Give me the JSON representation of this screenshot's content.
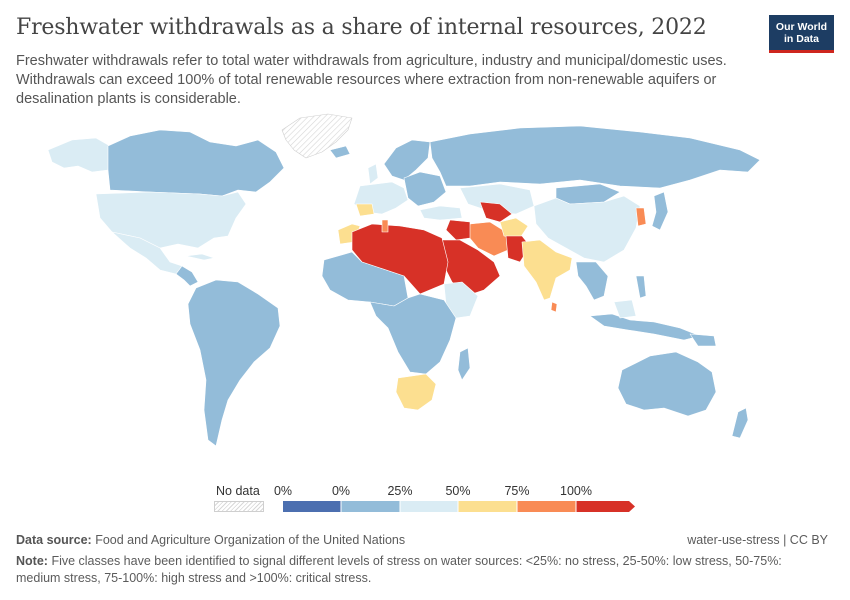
{
  "header": {
    "title": "Freshwater withdrawals as a share of internal resources, 2022",
    "subtitle": "Freshwater withdrawals refer to total water withdrawals from agriculture, industry and municipal/domestic uses. Withdrawals can exceed 100% of total renewable resources where extraction from non-renewable aquifers or desalination plants is considerable."
  },
  "logo": {
    "line1": "Our World",
    "line2": "in Data",
    "bg_color": "#1d3d63",
    "accent_color": "#ce261e"
  },
  "legend": {
    "no_data_label": "No data",
    "ticks": [
      "0%",
      "0%",
      "25%",
      "50%",
      "75%",
      "100%"
    ],
    "bins": [
      {
        "color": "#4c6fb0"
      },
      {
        "color": "#93bcd9"
      },
      {
        "color": "#daecf4"
      },
      {
        "color": "#fcdf90"
      },
      {
        "color": "#f98b55"
      },
      {
        "color": "#d73127"
      }
    ]
  },
  "footer": {
    "source_label": "Data source:",
    "source_text": "Food and Agriculture Organization of the United Nations",
    "credit": "water-use-stress | CC BY",
    "note_label": "Note:",
    "note_text": "Five classes have been identified to signal different levels of stress on water sources: <25%: no stress, 25-50%: low stress, 50-75%: medium stress, 75-100%: high stress and >100%: critical stress."
  }
}
